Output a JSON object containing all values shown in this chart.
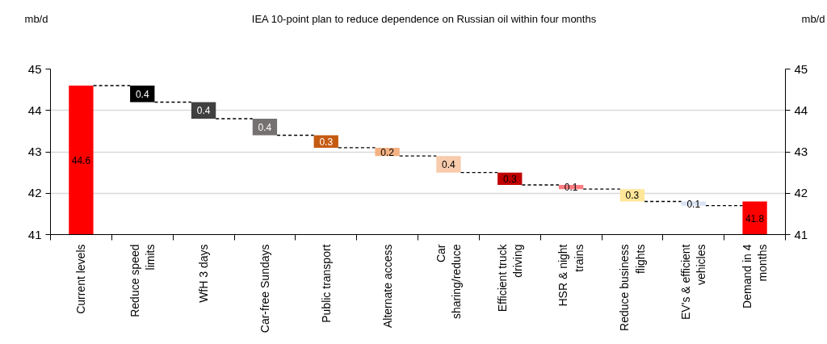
{
  "chart_data": {
    "type": "bar",
    "title": "IEA 10-point plan to reduce dependence on Russian oil within four months",
    "ylabel": "mb/d",
    "y2label": "mb/d",
    "categories": [
      "Current levels",
      "Reduce speed limits",
      "WfH 3 days",
      "Car-free Sundays",
      "Public transport",
      "Alternate access",
      "Car sharing/reduce",
      "Efficient truck driving",
      "HSR & night trains",
      "Reduce business flights",
      "EV's & efficient vehicles",
      "Demand in 4 months"
    ],
    "values": [
      44.6,
      0.4,
      0.4,
      0.4,
      0.3,
      0.2,
      0.4,
      0.3,
      0.1,
      0.3,
      0.1,
      41.8
    ],
    "base": [
      null,
      44.2,
      43.8,
      43.4,
      43.1,
      42.9,
      42.5,
      42.2,
      42.1,
      41.8,
      41.7,
      null
    ],
    "colors": [
      "#ff0000",
      "#000000",
      "#404040",
      "#767171",
      "#c55a11",
      "#f4b183",
      "#f8cbad",
      "#c00000",
      "#ff7c80",
      "#ffe699",
      "#dae3f3",
      "#ff0000"
    ],
    "data_labels": true,
    "ylim": [
      41,
      45
    ],
    "yticks": [
      41,
      42,
      43,
      44,
      45
    ],
    "y2lim": [
      41,
      45
    ],
    "y2ticks": [
      41,
      42,
      43,
      44,
      45
    ],
    "grid": "y"
  }
}
